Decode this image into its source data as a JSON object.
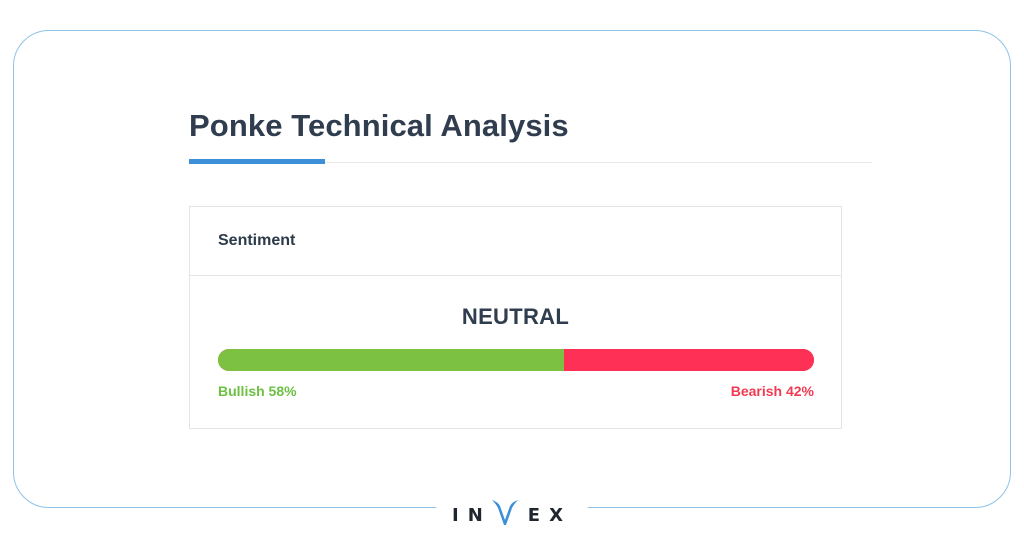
{
  "page": {
    "title": "Ponke Technical Analysis"
  },
  "sentiment_card": {
    "header_label": "Sentiment",
    "verdict": "NEUTRAL",
    "bullish": {
      "label": "Bullish 58%",
      "percent": 58,
      "color": "#7cc142"
    },
    "bearish": {
      "label": "Bearish 42%",
      "percent": 42,
      "color": "#ff3056"
    }
  },
  "brand": {
    "text_left": "IN",
    "text_right": "EX",
    "logo_icon": "invex-v-horns-icon",
    "accent_color": "#3d8fd8"
  }
}
